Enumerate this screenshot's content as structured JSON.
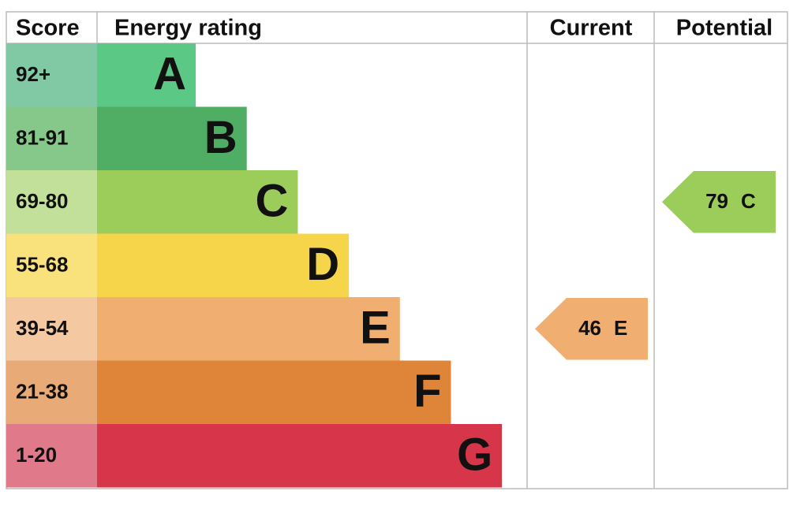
{
  "header": {
    "score": "Score",
    "rating": "Energy rating",
    "current": "Current",
    "potential": "Potential"
  },
  "bands": [
    {
      "range": "92+",
      "letter": "A",
      "color": "#5cc885",
      "score_color": "#80c9a4"
    },
    {
      "range": "81-91",
      "letter": "B",
      "color": "#4fae63",
      "score_color": "#86c78a"
    },
    {
      "range": "69-80",
      "letter": "C",
      "color": "#9ccc5a",
      "score_color": "#c3e09a"
    },
    {
      "range": "55-68",
      "letter": "D",
      "color": "#f6d54a",
      "score_color": "#f9e27c"
    },
    {
      "range": "39-54",
      "letter": "E",
      "color": "#f0ae70",
      "score_color": "#f4c9a1"
    },
    {
      "range": "21-38",
      "letter": "F",
      "color": "#df853a",
      "score_color": "#e8ab78"
    },
    {
      "range": "1-20",
      "letter": "G",
      "color": "#d7364a",
      "score_color": "#e07a8a"
    }
  ],
  "current": {
    "score": 46,
    "rating": "E"
  },
  "potential": {
    "score": 79,
    "rating": "C"
  }
}
